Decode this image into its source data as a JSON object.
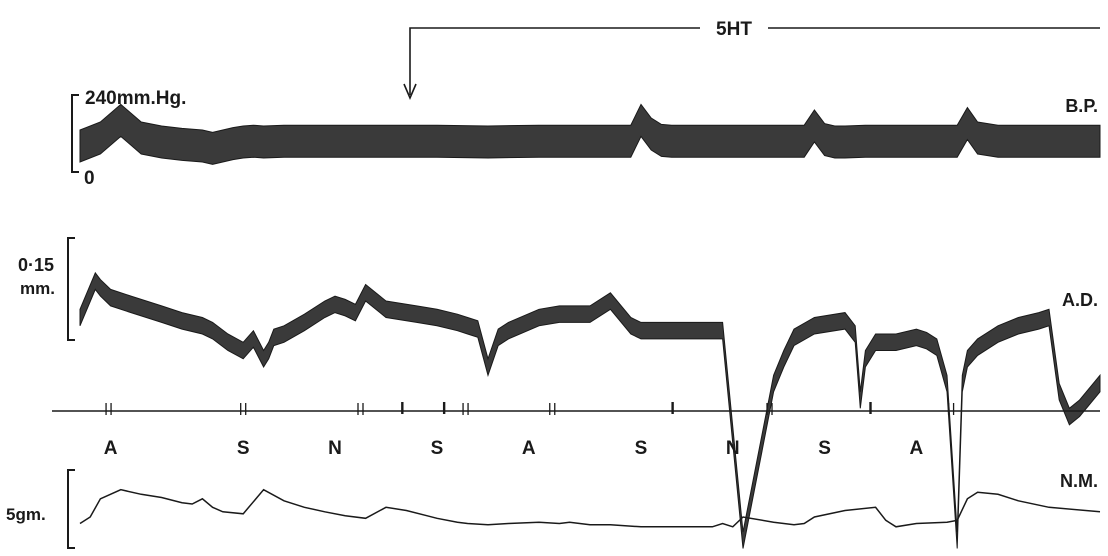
{
  "chart_data": {
    "type": "line",
    "title": "",
    "drug_bar": {
      "label": "5HT"
    },
    "traces": [
      {
        "id": "bp",
        "name": "B.P.",
        "scale_top": "240mm.Hg.",
        "scale_bottom": "0",
        "x": [
          0,
          2,
          4,
          6,
          8,
          10,
          12,
          13,
          14,
          15,
          16,
          17,
          18,
          20,
          23,
          25,
          30,
          35,
          40,
          45,
          50,
          52,
          54,
          55,
          56,
          57,
          58,
          60,
          65,
          70,
          71,
          72,
          73,
          74,
          75,
          77,
          80,
          82,
          84,
          85,
          86,
          87,
          88,
          90,
          95,
          99,
          100
        ],
        "y": [
          0.3,
          0.4,
          0.62,
          0.4,
          0.35,
          0.32,
          0.3,
          0.27,
          0.3,
          0.33,
          0.35,
          0.36,
          0.35,
          0.36,
          0.36,
          0.36,
          0.36,
          0.36,
          0.35,
          0.36,
          0.36,
          0.36,
          0.36,
          0.62,
          0.45,
          0.37,
          0.36,
          0.36,
          0.36,
          0.36,
          0.36,
          0.55,
          0.38,
          0.35,
          0.35,
          0.36,
          0.36,
          0.36,
          0.36,
          0.36,
          0.36,
          0.58,
          0.4,
          0.36,
          0.36,
          0.36,
          0.36
        ],
        "band": 0.4
      },
      {
        "id": "ad",
        "name": "A.D.",
        "scale_top": "0·15",
        "scale_unit": "mm.",
        "x": [
          0,
          1.5,
          2,
          3,
          5,
          8,
          10,
          12,
          13,
          14.5,
          16,
          17,
          18,
          18.5,
          19,
          20,
          22,
          24,
          25,
          26,
          27,
          28,
          30,
          33,
          35,
          37,
          38,
          39,
          40,
          41,
          42,
          45,
          47,
          50,
          52,
          54,
          55,
          55.5,
          56,
          58,
          60,
          62,
          63,
          65,
          68,
          69,
          70,
          72,
          75,
          76,
          76.5,
          77,
          78,
          80,
          82,
          83,
          84,
          85,
          86,
          86.5,
          87,
          88,
          90,
          92,
          94,
          95,
          96,
          97,
          98,
          100
        ],
        "y": [
          0.5,
          0.72,
          0.68,
          0.62,
          0.58,
          0.52,
          0.48,
          0.45,
          0.42,
          0.35,
          0.3,
          0.37,
          0.25,
          0.3,
          0.38,
          0.4,
          0.47,
          0.55,
          0.58,
          0.56,
          0.53,
          0.65,
          0.55,
          0.52,
          0.5,
          0.47,
          0.45,
          0.43,
          0.2,
          0.38,
          0.42,
          0.5,
          0.52,
          0.52,
          0.6,
          0.45,
          0.42,
          0.42,
          0.42,
          0.42,
          0.42,
          0.42,
          0.42,
          -0.85,
          0.1,
          0.25,
          0.38,
          0.45,
          0.48,
          0.4,
          0.0,
          0.25,
          0.35,
          0.35,
          0.38,
          0.36,
          0.32,
          0.1,
          -0.85,
          0.1,
          0.25,
          0.32,
          0.4,
          0.45,
          0.48,
          0.5,
          0.05,
          -0.1,
          -0.05,
          0.1
        ],
        "band": 0.1
      },
      {
        "id": "nm",
        "name": "N.M.",
        "scale_label": "5gm.",
        "x": [
          0,
          1,
          2,
          4,
          6,
          8,
          10,
          11,
          12,
          13,
          14,
          16,
          18,
          20,
          22,
          24,
          26,
          28,
          30,
          32,
          34,
          35,
          37,
          38,
          40,
          42,
          45,
          47,
          48,
          49,
          50,
          52,
          55,
          58,
          60,
          62,
          63,
          64,
          65,
          68,
          70,
          71,
          72,
          75,
          78,
          79,
          80,
          82,
          85,
          86,
          87,
          88,
          90,
          92,
          95,
          100
        ],
        "y": [
          0.1,
          0.2,
          0.48,
          0.62,
          0.55,
          0.5,
          0.42,
          0.4,
          0.48,
          0.35,
          0.28,
          0.25,
          0.62,
          0.45,
          0.35,
          0.28,
          0.22,
          0.18,
          0.35,
          0.3,
          0.22,
          0.18,
          0.12,
          0.1,
          0.08,
          0.1,
          0.12,
          0.1,
          0.12,
          0.1,
          0.08,
          0.08,
          0.05,
          0.05,
          0.05,
          0.05,
          0.1,
          0.05,
          0.2,
          0.12,
          0.08,
          0.1,
          0.2,
          0.3,
          0.35,
          0.15,
          0.05,
          0.1,
          0.12,
          0.15,
          0.48,
          0.58,
          0.55,
          0.45,
          0.35,
          0.28
        ],
        "band": 0
      }
    ],
    "signals": {
      "tick_x": [
        2.8,
        16.0,
        27.5,
        31.6,
        35.7,
        37.8,
        46.3,
        58.1,
        67.6,
        77.5,
        85.4
      ],
      "tick_kinds": [
        "pair",
        "pair",
        "pair",
        "single",
        "single",
        "pair",
        "pair",
        "single",
        "pair",
        "single",
        "pair"
      ],
      "injections": [
        {
          "label": "A",
          "x": 3
        },
        {
          "label": "S",
          "x": 16
        },
        {
          "label": "N",
          "x": 25
        },
        {
          "label": "S",
          "x": 35
        },
        {
          "label": "A",
          "x": 44
        },
        {
          "label": "S",
          "x": 55
        },
        {
          "label": "N",
          "x": 64
        },
        {
          "label": "S",
          "x": 73
        },
        {
          "label": "A",
          "x": 82
        }
      ]
    }
  }
}
